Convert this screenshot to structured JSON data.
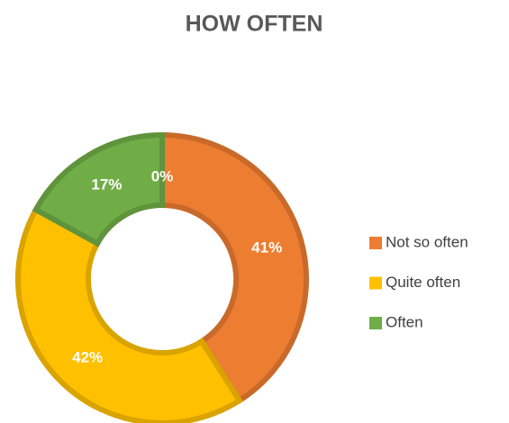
{
  "chart_data": {
    "type": "donut",
    "title": "HOW OFTEN",
    "categories": [
      "Not so often",
      "Quite often",
      "Often",
      null
    ],
    "values": [
      41,
      42,
      17,
      0
    ],
    "value_labels": [
      "41%",
      "42%",
      "17%",
      "0%"
    ],
    "colors": [
      "#ED7D31",
      "#FFC000",
      "#70AD47",
      "#5B9BD5"
    ],
    "legend": "right"
  }
}
